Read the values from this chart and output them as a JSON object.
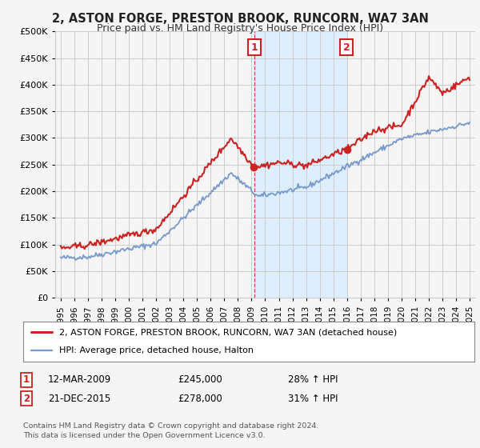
{
  "title": "2, ASTON FORGE, PRESTON BROOK, RUNCORN, WA7 3AN",
  "subtitle": "Price paid vs. HM Land Registry's House Price Index (HPI)",
  "legend_entry1": "2, ASTON FORGE, PRESTON BROOK, RUNCORN, WA7 3AN (detached house)",
  "legend_entry2": "HPI: Average price, detached house, Halton",
  "annotation1": {
    "num": "1",
    "date": "12-MAR-2009",
    "price": "£245,000",
    "pct": "28% ↑ HPI"
  },
  "annotation2": {
    "num": "2",
    "date": "21-DEC-2015",
    "price": "£278,000",
    "pct": "31% ↑ HPI"
  },
  "footnote": "Contains HM Land Registry data © Crown copyright and database right 2024.\nThis data is licensed under the Open Government Licence v3.0.",
  "red_color": "#cc2222",
  "blue_color": "#7799cc",
  "shading_color": "#ddeeff",
  "background_color": "#f5f5f5",
  "grid_color": "#cccccc",
  "annotation_box_color": "#cc2222",
  "ylim": [
    0,
    500000
  ],
  "yticks": [
    0,
    50000,
    100000,
    150000,
    200000,
    250000,
    300000,
    350000,
    400000,
    450000,
    500000
  ],
  "sale1_year": 2009.19,
  "sale2_year": 2015.97,
  "sale1_price": 245000,
  "sale2_price": 278000
}
